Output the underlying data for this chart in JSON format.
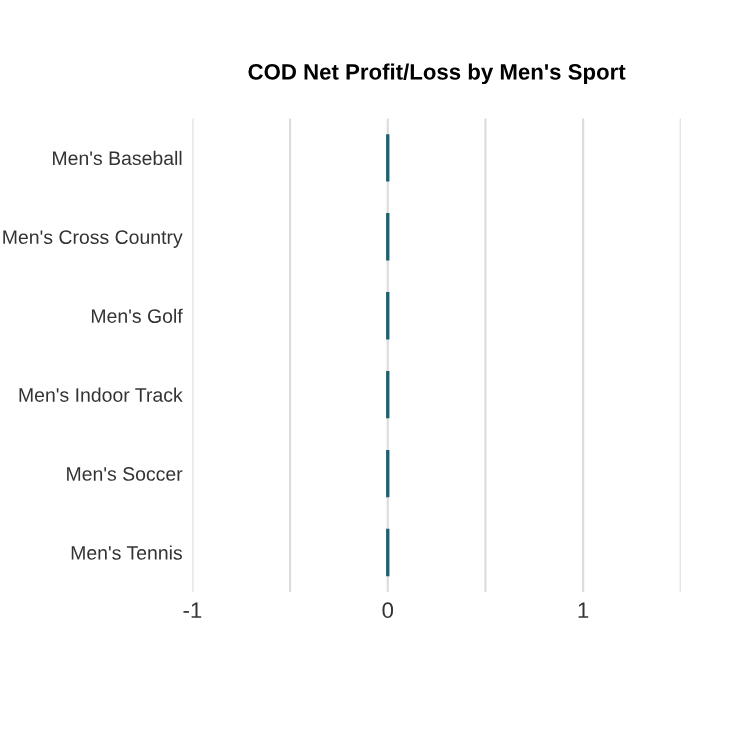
{
  "chart_data": {
    "type": "bar",
    "orientation": "horizontal",
    "title": "COD Net Profit/Loss by Men's Sport",
    "categories": [
      "Men's Baseball",
      "Men's Cross Country",
      "Men's Golf",
      "Men's Indoor Track",
      "Men's Soccer",
      "Men's Tennis"
    ],
    "values": [
      0,
      0,
      0,
      0,
      0,
      0
    ],
    "color": "#1f5f6e",
    "xlim": [
      -1,
      1.5
    ],
    "xticks": [
      -1,
      {
        "value": -0.5,
        "label": null
      },
      0,
      {
        "value": 0.5,
        "label": null
      },
      1,
      {
        "value": 1.5,
        "label": null
      }
    ],
    "grid": "x"
  }
}
